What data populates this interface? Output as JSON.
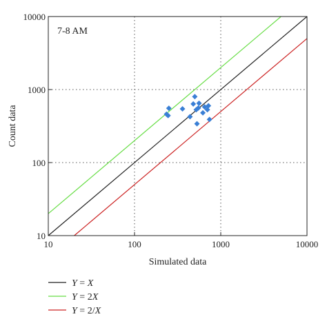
{
  "chart_data": {
    "type": "scatter",
    "title": "",
    "annotation": "7-8 AM",
    "xlabel": "Simulated data",
    "ylabel": "Count data",
    "xscale": "log",
    "yscale": "log",
    "xlim": [
      10,
      10000
    ],
    "ylim": [
      10,
      10000
    ],
    "x_ticks": [
      10,
      100,
      1000,
      10000
    ],
    "y_ticks": [
      10,
      100,
      1000,
      10000
    ],
    "x_tick_labels": [
      "10",
      "100",
      "1000",
      "10000"
    ],
    "y_tick_labels": [
      "10",
      "100",
      "1000",
      "10000"
    ],
    "grid": true,
    "grid_style": "dotted",
    "legend_position": "bottom",
    "points": {
      "color": "#3a7fd5",
      "marker": "diamond",
      "data": [
        {
          "x": 235,
          "y": 460
        },
        {
          "x": 245,
          "y": 440
        },
        {
          "x": 250,
          "y": 555
        },
        {
          "x": 360,
          "y": 545
        },
        {
          "x": 440,
          "y": 425
        },
        {
          "x": 480,
          "y": 635
        },
        {
          "x": 500,
          "y": 800
        },
        {
          "x": 520,
          "y": 530
        },
        {
          "x": 530,
          "y": 340
        },
        {
          "x": 550,
          "y": 560
        },
        {
          "x": 560,
          "y": 650
        },
        {
          "x": 620,
          "y": 480
        },
        {
          "x": 650,
          "y": 580
        },
        {
          "x": 700,
          "y": 530
        },
        {
          "x": 720,
          "y": 600
        },
        {
          "x": 740,
          "y": 390
        }
      ]
    },
    "series": [
      {
        "label_lhs": "Y",
        "label_eq": " = ",
        "label_rhs": "X",
        "color": "#222222",
        "k": 1
      },
      {
        "label_lhs": "Y",
        "label_eq": " = 2",
        "label_rhs": "X",
        "color": "#66dd44",
        "k": 2
      },
      {
        "label_lhs": "Y",
        "label_eq": " = 2/",
        "label_rhs": "X",
        "color": "#cc2222",
        "k": 0.5
      }
    ]
  }
}
